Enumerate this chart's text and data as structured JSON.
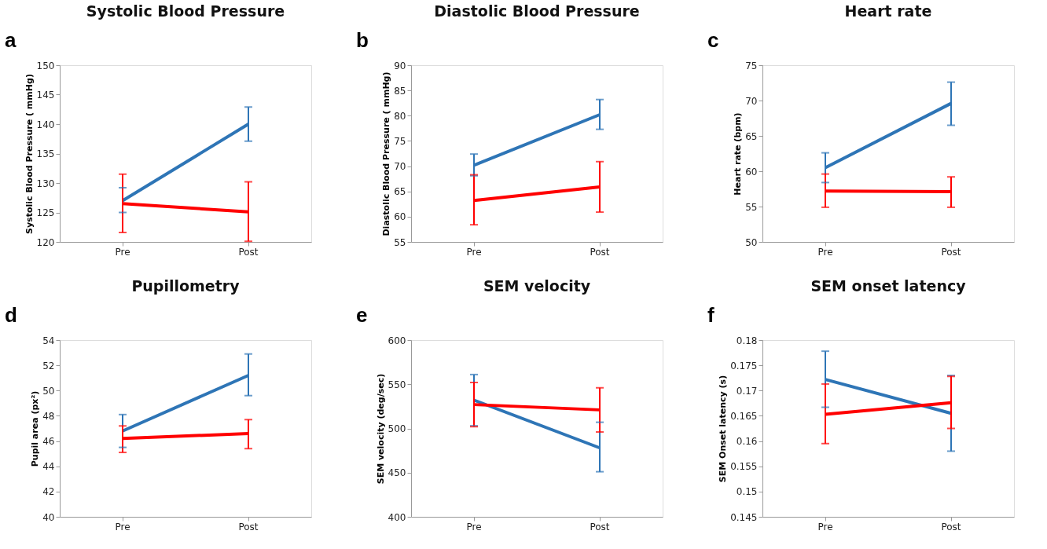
{
  "chart_data": [
    {
      "type": "line",
      "title": "Systolic Blood Pressure",
      "ylabel": "Systolic Blood Pressure ( mmHg)",
      "annotations": [
        "a"
      ],
      "categories": [
        "Pre",
        "Post"
      ],
      "ylim": [
        120,
        150
      ],
      "yticks": [
        120,
        125,
        130,
        135,
        140,
        145,
        150
      ],
      "grid": false,
      "marker": "none",
      "line_style": "solid",
      "series": [
        {
          "color": "#2e75b6",
          "values": [
            127,
            140
          ],
          "errors": [
            [
              125,
              129.2
            ],
            [
              137.1,
              142.9
            ]
          ]
        },
        {
          "color": "#ff0000",
          "values": [
            126.5,
            125.1
          ],
          "errors": [
            [
              121.6,
              131.5
            ],
            [
              120.1,
              130.2
            ]
          ]
        }
      ]
    },
    {
      "type": "line",
      "title": "Diastolic Blood Pressure",
      "ylabel": "Diastolic Blood Pressure ( mmHg)",
      "annotations": [
        "b"
      ],
      "categories": [
        "Pre",
        "Post"
      ],
      "ylim": [
        55,
        90
      ],
      "yticks": [
        55,
        60,
        65,
        70,
        75,
        80,
        85,
        90
      ],
      "grid": false,
      "marker": "none",
      "line_style": "solid",
      "series": [
        {
          "color": "#2e75b6",
          "values": [
            70.2,
            80.2
          ],
          "errors": [
            [
              68.1,
              72.4
            ],
            [
              77.3,
              83.2
            ]
          ]
        },
        {
          "color": "#ff0000",
          "values": [
            63.2,
            65.9
          ],
          "errors": [
            [
              58.4,
              68.3
            ],
            [
              60.9,
              70.9
            ]
          ]
        }
      ]
    },
    {
      "type": "line",
      "title": "Heart rate",
      "ylabel": "Heart rate  (bpm)",
      "annotations": [
        "c"
      ],
      "categories": [
        "Pre",
        "Post"
      ],
      "ylim": [
        50,
        75
      ],
      "yticks": [
        50,
        55,
        60,
        65,
        70,
        75
      ],
      "grid": false,
      "marker": "none",
      "line_style": "solid",
      "series": [
        {
          "color": "#2e75b6",
          "values": [
            60.5,
            69.6
          ],
          "errors": [
            [
              58.4,
              62.6
            ],
            [
              66.5,
              72.6
            ]
          ]
        },
        {
          "color": "#ff0000",
          "values": [
            57.2,
            57.1
          ],
          "errors": [
            [
              54.9,
              59.6
            ],
            [
              54.9,
              59.2
            ]
          ]
        }
      ]
    },
    {
      "type": "line",
      "title": "Pupillometry",
      "ylabel": "Pupil area (px²)",
      "annotations": [
        "d"
      ],
      "categories": [
        "Pre",
        "Post"
      ],
      "ylim": [
        40,
        54
      ],
      "yticks": [
        40,
        42,
        44,
        46,
        48,
        50,
        52,
        54
      ],
      "grid": false,
      "marker": "none",
      "line_style": "solid",
      "series": [
        {
          "color": "#2e75b6",
          "values": [
            46.8,
            51.2
          ],
          "errors": [
            [
              45.5,
              48.1
            ],
            [
              49.6,
              52.9
            ]
          ]
        },
        {
          "color": "#ff0000",
          "values": [
            46.2,
            46.6
          ],
          "errors": [
            [
              45.1,
              47.2
            ],
            [
              45.4,
              47.7
            ]
          ]
        }
      ]
    },
    {
      "type": "line",
      "title": "SEM velocity",
      "ylabel": "SEM velocity  (deg/sec)",
      "annotations": [
        "e"
      ],
      "categories": [
        "Pre",
        "Post"
      ],
      "ylim": [
        400,
        600
      ],
      "yticks": [
        400,
        450,
        500,
        550,
        600
      ],
      "grid": false,
      "marker": "none",
      "line_style": "solid",
      "series": [
        {
          "color": "#2e75b6",
          "values": [
            532,
            478
          ],
          "errors": [
            [
              503,
              561
            ],
            [
              451,
              507
            ]
          ]
        },
        {
          "color": "#ff0000",
          "values": [
            527,
            521
          ],
          "errors": [
            [
              502,
              552
            ],
            [
              496,
              546
            ]
          ]
        }
      ]
    },
    {
      "type": "line",
      "title": "SEM onset latency",
      "ylabel": "SEM Onset latency  (s)",
      "annotations": [
        "f"
      ],
      "categories": [
        "Pre",
        "Post"
      ],
      "ylim": [
        0.145,
        0.18
      ],
      "yticks": [
        0.145,
        0.15,
        0.155,
        0.16,
        0.165,
        0.17,
        0.175,
        0.18
      ],
      "grid": false,
      "marker": "none",
      "line_style": "solid",
      "series": [
        {
          "color": "#2e75b6",
          "values": [
            0.1722,
            0.1655
          ],
          "errors": [
            [
              0.1667,
              0.1778
            ],
            [
              0.158,
              0.173
            ]
          ]
        },
        {
          "color": "#ff0000",
          "values": [
            0.1653,
            0.1676
          ],
          "errors": [
            [
              0.1595,
              0.1713
            ],
            [
              0.1625,
              0.1728
            ]
          ]
        }
      ]
    }
  ]
}
